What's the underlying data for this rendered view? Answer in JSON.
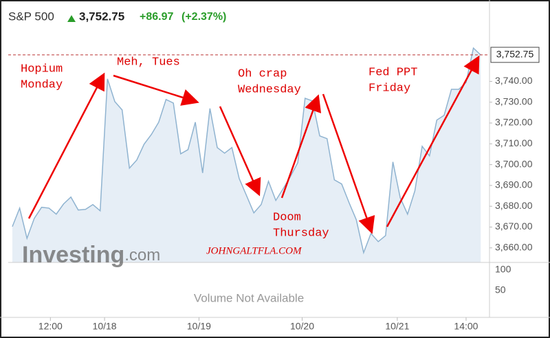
{
  "header": {
    "name": "S&P 500",
    "change": "+86.97",
    "change_pct": "(+2.37%)"
  },
  "chart_data": {
    "type": "line",
    "series": [
      {
        "name": "S&P 500",
        "color": "#8fb3d0",
        "values": [
          3670.2,
          3679.1,
          3664.6,
          3674.2,
          3679.5,
          3679.1,
          3676.2,
          3681.1,
          3684.4,
          3678.2,
          3678.5,
          3680.8,
          3677.8,
          3741.2,
          3730.3,
          3726.3,
          3698.3,
          3702.2,
          3709.8,
          3714.5,
          3720.4,
          3731.3,
          3729.6,
          3705.2,
          3707.2,
          3720.4,
          3696.0,
          3727.0,
          3708.2,
          3705.5,
          3708.2,
          3693.3,
          3685.1,
          3676.8,
          3680.8,
          3692.0,
          3682.8,
          3688.4,
          3694.3,
          3700.9,
          3731.9,
          3730.6,
          3713.8,
          3712.5,
          3692.7,
          3690.7,
          3681.8,
          3673.5,
          3657.7,
          3666.9,
          3663.0,
          3665.9,
          3701.3,
          3684.1,
          3676.2,
          3687.4,
          3708.8,
          3704.2,
          3721.4,
          3723.7,
          3736.2,
          3736.2,
          3739.5,
          3756.0,
          3752.7
        ]
      }
    ],
    "xlim": [
      -0.56,
      65.2
    ],
    "xticks": [
      {
        "value": 5.2,
        "label": "12:00"
      },
      {
        "value": 12.6,
        "label": "10/18"
      },
      {
        "value": 25.5,
        "label": "10/19"
      },
      {
        "value": 39.6,
        "label": "10/20"
      },
      {
        "value": 52.6,
        "label": "10/21"
      },
      {
        "value": 62.0,
        "label": "14:00"
      }
    ],
    "ylim": [
      3653,
      3759.3
    ],
    "yticks": [
      {
        "value": 3660,
        "label": "3,660.00"
      },
      {
        "value": 3670,
        "label": "3,670.00"
      },
      {
        "value": 3680,
        "label": "3,680.00"
      },
      {
        "value": 3690,
        "label": "3,690.00"
      },
      {
        "value": 3700,
        "label": "3,700.00"
      },
      {
        "value": 3710,
        "label": "3,710.00"
      },
      {
        "value": 3720,
        "label": "3,720.00"
      },
      {
        "value": 3730,
        "label": "3,730.00"
      },
      {
        "value": 3740,
        "label": "3,740.00"
      }
    ],
    "last_price": 3752.75,
    "last_price_label": "3,752.75",
    "volume": {
      "ylim": [
        0,
        118
      ],
      "yticks": [
        100,
        50
      ],
      "note": "Volume Not Available"
    },
    "watermark": [
      "Investing",
      ".com"
    ],
    "credit": "JOHNGALTFLA.COM",
    "annotations": [
      {
        "lines": [
          "Hopium",
          "Monday"
        ]
      },
      {
        "lines": [
          "Meh, Tues"
        ]
      },
      {
        "lines": [
          "Oh crap",
          "Wednesday"
        ]
      },
      {
        "lines": [
          "Doom",
          "Thursday"
        ]
      },
      {
        "lines": [
          "Fed PPT",
          "Friday"
        ]
      }
    ]
  }
}
